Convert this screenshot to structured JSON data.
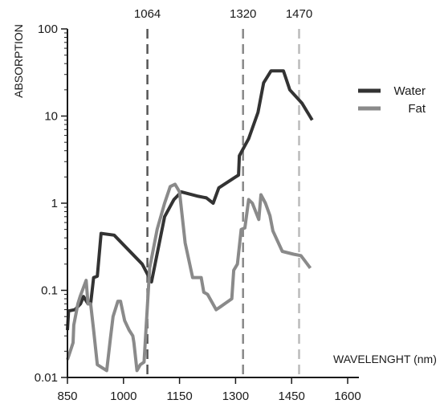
{
  "chart_data": {
    "type": "line",
    "title": "",
    "xlabel": "WAVELENGHT (nm)",
    "ylabel": "ABSORPTION",
    "xlim": [
      850,
      1600
    ],
    "ylim": [
      0.01,
      100
    ],
    "yscale": "log",
    "x_ticks": [
      850,
      1000,
      1150,
      1300,
      1450,
      1600
    ],
    "y_ticks": [
      0.01,
      0.1,
      1,
      10,
      100
    ],
    "y_tick_labels": [
      "0.01",
      "0.1",
      "1",
      "10",
      "100"
    ],
    "grid": false,
    "legend_position": "right",
    "reference_lines": [
      {
        "x": 1064,
        "label": "1064",
        "color": "#555555"
      },
      {
        "x": 1320,
        "label": "1320",
        "color": "#888888"
      },
      {
        "x": 1470,
        "label": "1470",
        "color": "#bbbbbb"
      }
    ],
    "series": [
      {
        "name": "Water",
        "color": "#333333",
        "points": [
          [
            850,
            0.035
          ],
          [
            853,
            0.058
          ],
          [
            870,
            0.06
          ],
          [
            885,
            0.07
          ],
          [
            893,
            0.085
          ],
          [
            905,
            0.07
          ],
          [
            912,
            0.07
          ],
          [
            920,
            0.14
          ],
          [
            930,
            0.145
          ],
          [
            940,
            0.45
          ],
          [
            975,
            0.43
          ],
          [
            1050,
            0.2
          ],
          [
            1075,
            0.125
          ],
          [
            1110,
            0.7
          ],
          [
            1135,
            1.1
          ],
          [
            1155,
            1.35
          ],
          [
            1200,
            1.2
          ],
          [
            1222,
            1.15
          ],
          [
            1240,
            1.0
          ],
          [
            1255,
            1.5
          ],
          [
            1300,
            2.0
          ],
          [
            1308,
            2.1
          ],
          [
            1310,
            3.5
          ],
          [
            1335,
            5.5
          ],
          [
            1360,
            11
          ],
          [
            1375,
            24
          ],
          [
            1395,
            33
          ],
          [
            1428,
            33
          ],
          [
            1445,
            20
          ],
          [
            1478,
            14
          ],
          [
            1505,
            9
          ]
        ]
      },
      {
        "name": "Fat",
        "color": "#8a8a8a",
        "points": [
          [
            850,
            0.016
          ],
          [
            865,
            0.025
          ],
          [
            867,
            0.04
          ],
          [
            878,
            0.07
          ],
          [
            884,
            0.085
          ],
          [
            900,
            0.13
          ],
          [
            905,
            0.07
          ],
          [
            912,
            0.07
          ],
          [
            920,
            0.035
          ],
          [
            930,
            0.014
          ],
          [
            955,
            0.012
          ],
          [
            965,
            0.028
          ],
          [
            972,
            0.05
          ],
          [
            985,
            0.075
          ],
          [
            992,
            0.075
          ],
          [
            1003,
            0.045
          ],
          [
            1015,
            0.035
          ],
          [
            1025,
            0.03
          ],
          [
            1028,
            0.025
          ],
          [
            1036,
            0.012
          ],
          [
            1045,
            0.014
          ],
          [
            1055,
            0.015
          ],
          [
            1070,
            0.18
          ],
          [
            1090,
            0.5
          ],
          [
            1110,
            1.0
          ],
          [
            1125,
            1.55
          ],
          [
            1138,
            1.65
          ],
          [
            1150,
            1.35
          ],
          [
            1165,
            0.35
          ],
          [
            1185,
            0.14
          ],
          [
            1208,
            0.14
          ],
          [
            1215,
            0.095
          ],
          [
            1225,
            0.09
          ],
          [
            1248,
            0.06
          ],
          [
            1260,
            0.065
          ],
          [
            1290,
            0.08
          ],
          [
            1295,
            0.17
          ],
          [
            1305,
            0.2
          ],
          [
            1315,
            0.5
          ],
          [
            1325,
            0.52
          ],
          [
            1335,
            1.1
          ],
          [
            1345,
            1.0
          ],
          [
            1362,
            0.65
          ],
          [
            1368,
            1.25
          ],
          [
            1380,
            1.0
          ],
          [
            1392,
            0.72
          ],
          [
            1400,
            0.48
          ],
          [
            1425,
            0.28
          ],
          [
            1455,
            0.26
          ],
          [
            1475,
            0.25
          ],
          [
            1500,
            0.18
          ]
        ]
      }
    ]
  }
}
